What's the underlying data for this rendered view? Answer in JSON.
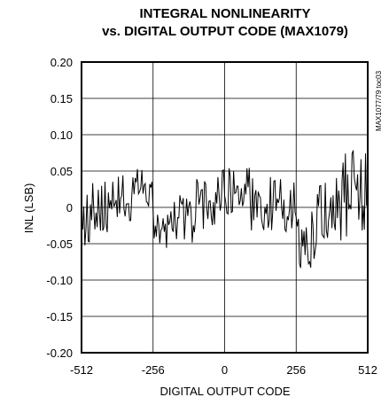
{
  "chart_data": {
    "type": "line",
    "title_line1": "INTEGRAL NONLINEARITY",
    "title_line2": "vs. DIGITAL OUTPUT CODE (MAX1079)",
    "xlabel": "DIGITAL OUTPUT CODE",
    "ylabel": "INL (LSB)",
    "figure_code": "MAX1077/79 toc03",
    "xlim": [
      -512,
      512
    ],
    "ylim": [
      -0.2,
      0.2
    ],
    "x_ticks": [
      -512,
      -256,
      0,
      256,
      512
    ],
    "x_tick_labels": [
      "-512",
      "-256",
      "0",
      "256",
      "512"
    ],
    "y_ticks": [
      0.2,
      0.15,
      0.1,
      0.05,
      0,
      -0.05,
      -0.1,
      -0.15,
      -0.2
    ],
    "y_tick_labels": [
      "0.20",
      "0.15",
      "0.10",
      "0.05",
      "0",
      "-0.05",
      "-0.10",
      "-0.15",
      "-0.20"
    ],
    "grid": true,
    "x_step": 4,
    "segments": [
      {
        "x_start": -512,
        "x_end": -480,
        "mean": -0.02,
        "amplitude": 0.04
      },
      {
        "x_start": -480,
        "x_end": -400,
        "mean": 0.005,
        "amplitude": 0.04
      },
      {
        "x_start": -400,
        "x_end": -320,
        "mean": 0.015,
        "amplitude": 0.035
      },
      {
        "x_start": -320,
        "x_end": -256,
        "mean": 0.025,
        "amplitude": 0.03
      },
      {
        "x_start": -256,
        "x_end": -200,
        "mean": -0.035,
        "amplitude": 0.035
      },
      {
        "x_start": -200,
        "x_end": -100,
        "mean": -0.015,
        "amplitude": 0.035
      },
      {
        "x_start": -100,
        "x_end": -30,
        "mean": 0.005,
        "amplitude": 0.035
      },
      {
        "x_start": -30,
        "x_end": 0,
        "mean": 0.02,
        "amplitude": 0.035
      },
      {
        "x_start": 0,
        "x_end": 90,
        "mean": 0.025,
        "amplitude": 0.035
      },
      {
        "x_start": 90,
        "x_end": 180,
        "mean": 0.005,
        "amplitude": 0.04
      },
      {
        "x_start": 180,
        "x_end": 256,
        "mean": 0.0,
        "amplitude": 0.04
      },
      {
        "x_start": 256,
        "x_end": 330,
        "mean": -0.045,
        "amplitude": 0.04
      },
      {
        "x_start": 330,
        "x_end": 420,
        "mean": 0.0,
        "amplitude": 0.05
      },
      {
        "x_start": 420,
        "x_end": 512,
        "mean": 0.02,
        "amplitude": 0.06
      }
    ]
  }
}
